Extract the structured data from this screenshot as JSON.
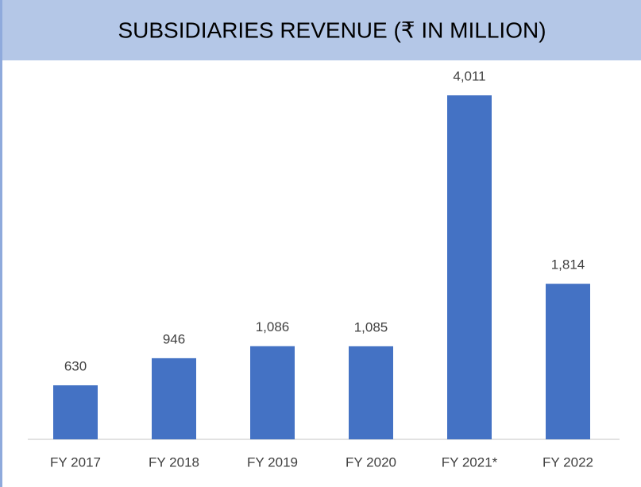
{
  "chart_data": {
    "type": "bar",
    "title": "SUBSIDIARIES REVENUE (₹ IN MILLION)",
    "categories": [
      "FY 2017",
      "FY 2018",
      "FY 2019",
      "FY 2020",
      "FY 2021*",
      "FY 2022"
    ],
    "values": [
      630,
      946,
      1086,
      1085,
      4011,
      1814
    ],
    "value_labels": [
      "630",
      "946",
      "1,086",
      "1,085",
      "4,011",
      "1,814"
    ],
    "color": "#4472c4"
  }
}
